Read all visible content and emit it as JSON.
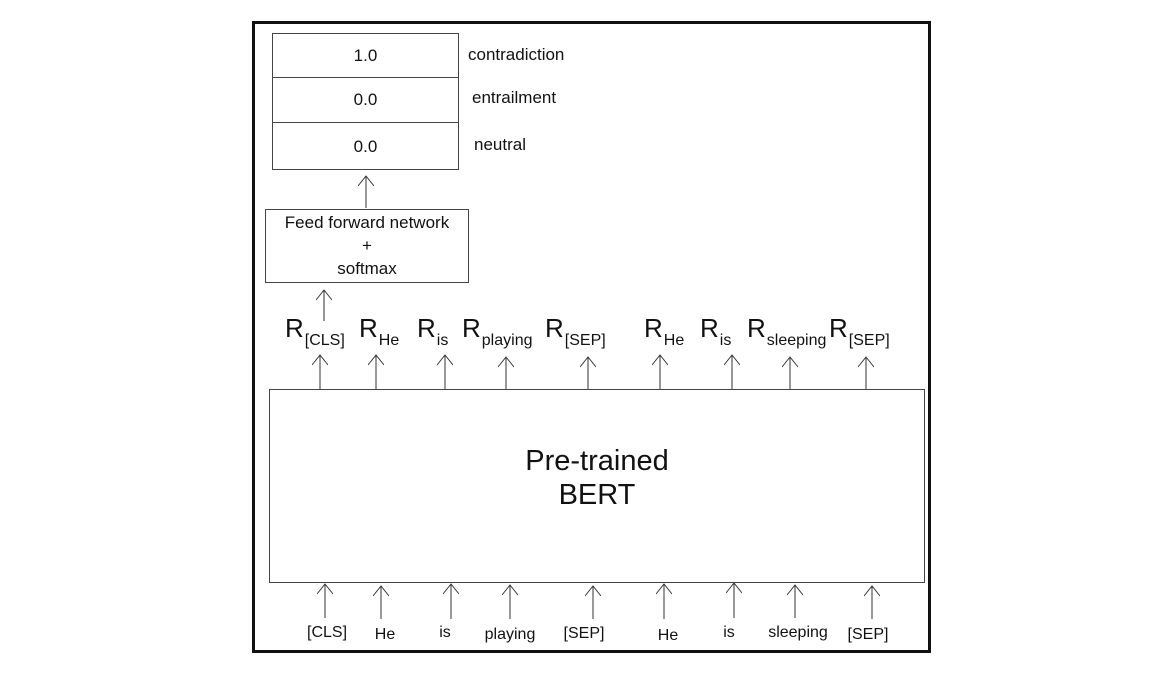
{
  "output": {
    "rows": [
      {
        "value": "1.0",
        "label": "contradiction"
      },
      {
        "value": "0.0",
        "label": "entrailment"
      },
      {
        "value": "0.0",
        "label": "neutral"
      }
    ]
  },
  "ffn": {
    "line1": "Feed forward network",
    "line2": "+",
    "line3": "softmax"
  },
  "representations": [
    {
      "base": "R",
      "sub": "[CLS]"
    },
    {
      "base": "R",
      "sub": "He"
    },
    {
      "base": "R",
      "sub": "is"
    },
    {
      "base": "R",
      "sub": "playing"
    },
    {
      "base": "R",
      "sub": "[SEP]"
    },
    {
      "base": "R",
      "sub": "He"
    },
    {
      "base": "R",
      "sub": "is"
    },
    {
      "base": "R",
      "sub": "sleeping"
    },
    {
      "base": "R",
      "sub": "[SEP]"
    }
  ],
  "bert": {
    "line1": "Pre-trained",
    "line2": "BERT"
  },
  "tokens": [
    "[CLS]",
    "He",
    "is",
    "playing",
    "[SEP]",
    "He",
    "is",
    "sleeping",
    "[SEP]"
  ]
}
